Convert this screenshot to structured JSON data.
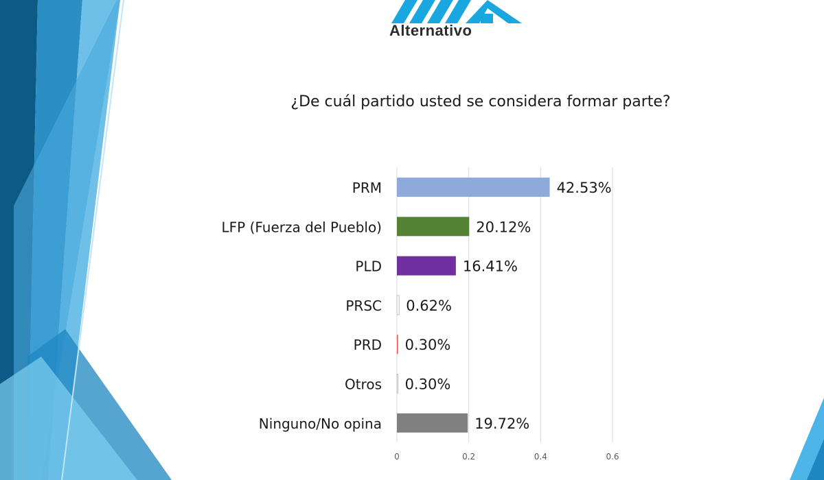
{
  "logo": {
    "text": "Alternativo",
    "color": "#1aa7e0"
  },
  "chart_data": {
    "type": "bar",
    "orientation": "horizontal",
    "title": "¿De cuál partido usted se considera formar parte?",
    "categories": [
      "PRM",
      "LFP (Fuerza del Pueblo)",
      "PLD",
      "PRSC",
      "PRD",
      "Otros",
      "Ninguno/No opina"
    ],
    "values": [
      0.4253,
      0.2012,
      0.1641,
      0.0062,
      0.003,
      0.003,
      0.1972
    ],
    "data_labels": [
      "42.53%",
      "20.12%",
      "16.41%",
      "0.62%",
      "0.30%",
      "0.30%",
      "19.72%"
    ],
    "colors": [
      "#8eaadb",
      "#548235",
      "#7030a0",
      "#ffffff",
      "#ff5050",
      "#ffffff",
      "#808080"
    ],
    "xlim": [
      0,
      0.6
    ],
    "xticks": [
      "0",
      "0.2",
      "0.4",
      "0.6"
    ],
    "grid": true,
    "legend": "none"
  }
}
